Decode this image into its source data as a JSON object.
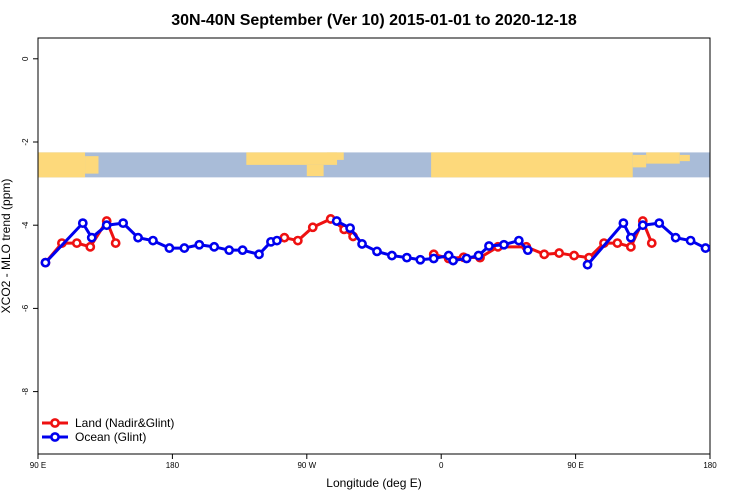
{
  "chart_data": {
    "type": "line",
    "title": "30N-40N September (Ver 10)   2015-01-01 to 2020-12-18",
    "xlabel": "Longitude (deg E)",
    "ylabel": "XCO2 - MLO trend (ppm)",
    "xlim": [
      90,
      540
    ],
    "ylim": [
      -9.5,
      0.5
    ],
    "x_ticks": [
      {
        "value": 90,
        "label": "90 E"
      },
      {
        "value": 180,
        "label": "180"
      },
      {
        "value": 270,
        "label": "90 W"
      },
      {
        "value": 360,
        "label": "0"
      },
      {
        "value": 450,
        "label": "90 E"
      },
      {
        "value": 540,
        "label": "180"
      }
    ],
    "y_ticks": [
      {
        "value": 0,
        "label": "0"
      },
      {
        "value": -2,
        "label": "-2"
      },
      {
        "value": -4,
        "label": "-4"
      },
      {
        "value": -6,
        "label": "-6"
      },
      {
        "value": -8,
        "label": "-8"
      }
    ],
    "grid": false,
    "legend_position": "bottom-left",
    "map_strip": {
      "y_top": -2.25,
      "y_bottom": -2.85,
      "ocean_color": "#a9bcd8",
      "land_color": "#fdd97b"
    },
    "series": [
      {
        "name": "Land (Nadir&Glint)",
        "color": "#ee1111",
        "segments": [
          [
            [
              95,
              -4.9
            ],
            [
              106,
              -4.43
            ],
            [
              116,
              -4.43
            ],
            [
              125,
              -4.52
            ],
            [
              136,
              -3.9
            ],
            [
              142,
              -4.43
            ]
          ],
          [
            [
              255,
              -4.3
            ],
            [
              264,
              -4.37
            ],
            [
              274,
              -4.05
            ],
            [
              286,
              -3.85
            ],
            [
              295,
              -4.1
            ],
            [
              301,
              -4.27
            ]
          ],
          [
            [
              355,
              -4.7
            ],
            [
              365,
              -4.8
            ],
            [
              375,
              -4.77
            ],
            [
              386,
              -4.78
            ],
            [
              398,
              -4.52
            ],
            [
              417,
              -4.52
            ],
            [
              429,
              -4.7
            ],
            [
              439,
              -4.67
            ],
            [
              449,
              -4.73
            ],
            [
              459,
              -4.78
            ],
            [
              469,
              -4.43
            ],
            [
              478,
              -4.43
            ],
            [
              487,
              -4.52
            ],
            [
              495,
              -3.9
            ],
            [
              501,
              -4.43
            ]
          ]
        ]
      },
      {
        "name": "Ocean (Glint)",
        "color": "#0000ee",
        "segments": [
          [
            [
              95,
              -4.9
            ],
            [
              120,
              -3.95
            ],
            [
              126,
              -4.3
            ],
            [
              136,
              -4.0
            ],
            [
              147,
              -3.95
            ],
            [
              157,
              -4.3
            ],
            [
              167,
              -4.37
            ],
            [
              178,
              -4.55
            ],
            [
              188,
              -4.55
            ],
            [
              198,
              -4.47
            ],
            [
              208,
              -4.52
            ],
            [
              218,
              -4.6
            ],
            [
              227,
              -4.6
            ],
            [
              238,
              -4.7
            ],
            [
              246,
              -4.4
            ],
            [
              250,
              -4.37
            ]
          ],
          [
            [
              290,
              -3.9
            ],
            [
              299,
              -4.07
            ],
            [
              307,
              -4.45
            ],
            [
              317,
              -4.63
            ],
            [
              327,
              -4.73
            ],
            [
              337,
              -4.78
            ],
            [
              346,
              -4.83
            ],
            [
              355,
              -4.8
            ],
            [
              365,
              -4.73
            ],
            [
              368,
              -4.85
            ],
            [
              377,
              -4.8
            ],
            [
              385,
              -4.73
            ],
            [
              392,
              -4.5
            ],
            [
              402,
              -4.47
            ],
            [
              412,
              -4.37
            ],
            [
              418,
              -4.6
            ]
          ],
          [
            [
              458,
              -4.95
            ],
            [
              482,
              -3.95
            ],
            [
              487,
              -4.3
            ],
            [
              495,
              -4.0
            ],
            [
              506,
              -3.95
            ],
            [
              517,
              -4.3
            ],
            [
              527,
              -4.37
            ],
            [
              537,
              -4.55
            ]
          ]
        ]
      }
    ]
  }
}
